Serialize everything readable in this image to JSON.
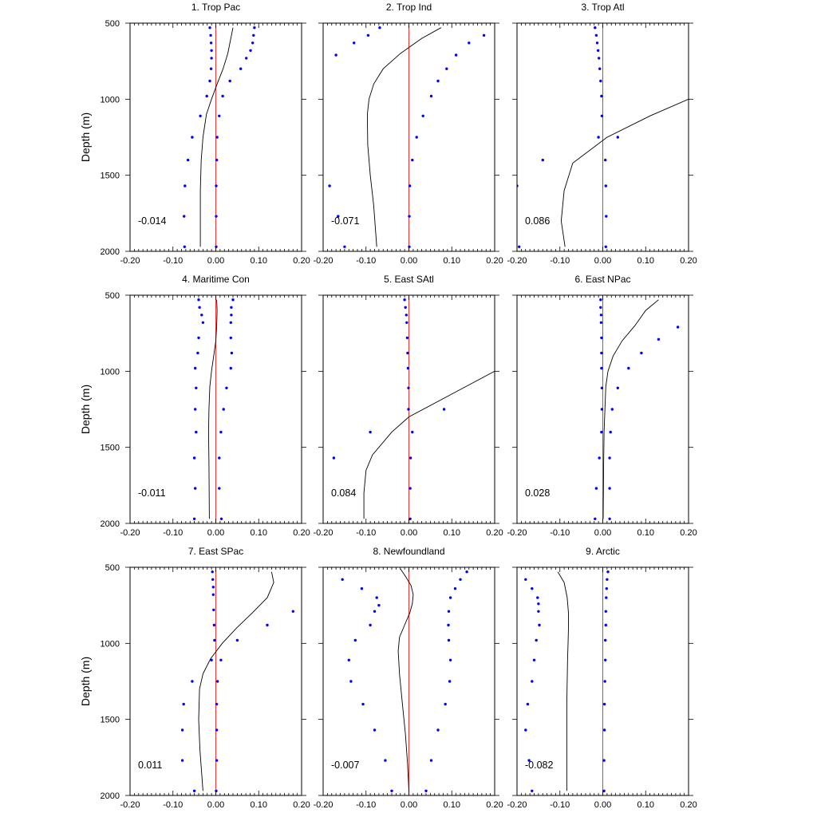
{
  "chart_data": [
    {
      "type": "line",
      "title": "1. Trop Pac",
      "ylabel": "Depth (m)",
      "xlim": [
        -0.2,
        0.2
      ],
      "ylim": [
        500,
        2000
      ],
      "y_inverted": true,
      "xticks": [
        "-0.20",
        "-0.10",
        "0.00",
        "0.10",
        "0.20"
      ],
      "yticks": [
        "500",
        "1000",
        "1500",
        "2000"
      ],
      "annotation": "-0.014",
      "series": [
        {
          "kind": "line",
          "color": "#000000",
          "x": [
            0.04,
            0.035,
            0.028,
            0.017,
            0.003,
            -0.01,
            -0.022,
            -0.03,
            -0.034,
            -0.036,
            -0.036
          ],
          "y": [
            530,
            600,
            700,
            800,
            900,
            1000,
            1100,
            1250,
            1400,
            1600,
            1970
          ]
        },
        {
          "kind": "points",
          "color": "#0000ff",
          "x": [
            -0.014,
            -0.012,
            -0.011,
            -0.01,
            -0.01,
            -0.011,
            -0.014,
            -0.021,
            -0.036,
            -0.055,
            -0.065,
            -0.072,
            -0.074,
            -0.073
          ],
          "y": [
            530,
            580,
            630,
            680,
            730,
            800,
            880,
            980,
            1110,
            1250,
            1400,
            1570,
            1770,
            1970
          ]
        },
        {
          "kind": "points",
          "color": "#0000ff",
          "x": [
            0.09,
            0.088,
            0.086,
            0.081,
            0.071,
            0.058,
            0.033,
            0.016,
            0.008,
            0.003,
            0.002,
            0.001,
            0.001,
            0.001
          ],
          "y": [
            530,
            580,
            630,
            680,
            730,
            800,
            880,
            980,
            1110,
            1250,
            1400,
            1570,
            1770,
            1970
          ]
        }
      ]
    },
    {
      "type": "line",
      "title": "2. Trop Ind",
      "ylabel": "",
      "xlim": [
        -0.2,
        0.2
      ],
      "ylim": [
        500,
        2000
      ],
      "y_inverted": true,
      "xticks": [
        "-0.20",
        "-0.10",
        "0.00",
        "0.10",
        "0.20"
      ],
      "yticks": [],
      "annotation": "-0.071",
      "series": [
        {
          "kind": "line",
          "color": "#000000",
          "x": [
            0.075,
            0.03,
            -0.02,
            -0.06,
            -0.082,
            -0.093,
            -0.097,
            -0.096,
            -0.09,
            -0.082,
            -0.075
          ],
          "y": [
            530,
            600,
            700,
            800,
            900,
            1000,
            1100,
            1300,
            1500,
            1700,
            1970
          ]
        },
        {
          "kind": "points",
          "color": "#0000ff",
          "x": [
            -0.068,
            -0.095,
            -0.128,
            -0.17,
            -0.185,
            -0.165,
            -0.15
          ],
          "y": [
            530,
            580,
            630,
            710,
            1570,
            1770,
            1970
          ]
        },
        {
          "kind": "points",
          "color": "#0000ff",
          "x": [
            0.175,
            0.14,
            0.11,
            0.088,
            0.068,
            0.052,
            0.033,
            0.018,
            0.008,
            0.002,
            0.001,
            0.001
          ],
          "y": [
            580,
            630,
            710,
            800,
            880,
            980,
            1110,
            1250,
            1400,
            1570,
            1770,
            1970
          ]
        }
      ]
    },
    {
      "type": "line",
      "title": "3. Trop Atl",
      "ylabel": "",
      "xlim": [
        -0.2,
        0.2
      ],
      "ylim": [
        500,
        2000
      ],
      "y_inverted": true,
      "xticks": [
        "-0.20",
        "-0.10",
        "0.00",
        "0.10",
        "0.20"
      ],
      "yticks": [],
      "annotation": "0.086",
      "series": [
        {
          "kind": "line",
          "color": "#000000",
          "x": [
            0.2,
            0.11,
            0.01,
            -0.07,
            -0.09,
            -0.097,
            -0.088
          ],
          "y": [
            1000,
            1110,
            1250,
            1420,
            1600,
            1800,
            1970
          ]
        },
        {
          "kind": "points",
          "color": "#0000ff",
          "x": [
            -0.018,
            -0.015,
            -0.013,
            -0.011,
            -0.009,
            -0.007,
            -0.005,
            -0.003,
            -0.002,
            -0.01,
            -0.14,
            -0.2,
            -0.195
          ],
          "y": [
            530,
            580,
            630,
            680,
            730,
            800,
            880,
            980,
            1110,
            1250,
            1400,
            1570,
            1970
          ]
        },
        {
          "kind": "points",
          "color": "#0000ff",
          "x": [
            0.035,
            0.006,
            0.007,
            0.008,
            0.007
          ],
          "y": [
            1250,
            1400,
            1570,
            1770,
            1970
          ]
        }
      ]
    },
    {
      "type": "line",
      "title": "4. Maritime Con",
      "ylabel": "Depth (m)",
      "xlim": [
        -0.2,
        0.2
      ],
      "ylim": [
        500,
        2000
      ],
      "y_inverted": true,
      "xticks": [
        "-0.20",
        "-0.10",
        "0.00",
        "0.10",
        "0.20"
      ],
      "yticks": [
        "500",
        "1000",
        "1500",
        "2000"
      ],
      "annotation": "-0.011",
      "series": [
        {
          "kind": "line",
          "color": "#000000",
          "x": [
            0.002,
            0.003,
            0.002,
            0.0,
            -0.005,
            -0.01,
            -0.014,
            -0.016,
            -0.017,
            -0.016,
            -0.015
          ],
          "y": [
            530,
            600,
            700,
            800,
            900,
            1000,
            1100,
            1250,
            1400,
            1600,
            1970
          ]
        },
        {
          "kind": "points",
          "color": "#0000ff",
          "x": [
            -0.04,
            -0.038,
            -0.033,
            -0.03,
            -0.04,
            -0.042,
            -0.048,
            -0.046,
            -0.048,
            -0.046,
            -0.05,
            -0.048,
            -0.05
          ],
          "y": [
            530,
            580,
            630,
            680,
            780,
            880,
            980,
            1110,
            1250,
            1400,
            1570,
            1770,
            1970
          ]
        },
        {
          "kind": "points",
          "color": "#0000ff",
          "x": [
            0.04,
            0.036,
            0.036,
            0.035,
            0.035,
            0.037,
            0.035,
            0.025,
            0.018,
            0.012,
            0.008,
            0.008,
            0.013
          ],
          "y": [
            530,
            580,
            630,
            680,
            780,
            880,
            980,
            1110,
            1250,
            1400,
            1570,
            1770,
            1970
          ]
        }
      ]
    },
    {
      "type": "line",
      "title": "5. East SAtl",
      "ylabel": "",
      "xlim": [
        -0.2,
        0.2
      ],
      "ylim": [
        500,
        2000
      ],
      "y_inverted": true,
      "xticks": [
        "-0.20",
        "-0.10",
        "0.00",
        "0.10",
        "0.20"
      ],
      "yticks": [],
      "annotation": "0.084",
      "series": [
        {
          "kind": "line",
          "color": "#000000",
          "x": [
            0.2,
            0.1,
            0.0,
            -0.04,
            -0.085,
            -0.1,
            -0.105,
            -0.105
          ],
          "y": [
            1000,
            1150,
            1300,
            1400,
            1550,
            1650,
            1800,
            1970
          ]
        },
        {
          "kind": "points",
          "color": "#0000ff",
          "x": [
            -0.01,
            -0.008,
            -0.006,
            -0.005,
            -0.004,
            -0.003,
            -0.002,
            -0.001,
            -0.001,
            -0.09,
            -0.175
          ],
          "y": [
            530,
            580,
            630,
            680,
            780,
            880,
            980,
            1110,
            1250,
            1400,
            1570
          ]
        },
        {
          "kind": "points",
          "color": "#0000ff",
          "x": [
            0.082,
            0.008,
            0.004,
            0.003,
            0.003
          ],
          "y": [
            1250,
            1400,
            1570,
            1770,
            1970
          ]
        }
      ]
    },
    {
      "type": "line",
      "title": "6. East NPac",
      "ylabel": "",
      "xlim": [
        -0.2,
        0.2
      ],
      "ylim": [
        500,
        2000
      ],
      "y_inverted": true,
      "xticks": [
        "-0.20",
        "-0.10",
        "0.00",
        "0.10",
        "0.20"
      ],
      "yticks": [],
      "annotation": "0.028",
      "series": [
        {
          "kind": "line",
          "color": "#000000",
          "x": [
            0.13,
            0.1,
            0.075,
            0.045,
            0.024,
            0.012,
            0.007,
            0.005,
            0.003,
            0.002,
            0.001
          ],
          "y": [
            530,
            600,
            700,
            800,
            900,
            1000,
            1100,
            1250,
            1400,
            1600,
            1970
          ]
        },
        {
          "kind": "points",
          "color": "#0000ff",
          "x": [
            -0.005,
            -0.005,
            -0.004,
            -0.004,
            -0.003,
            -0.003,
            -0.003,
            -0.002,
            -0.002,
            -0.003,
            -0.008,
            -0.015,
            -0.018
          ],
          "y": [
            530,
            580,
            630,
            680,
            780,
            880,
            980,
            1110,
            1250,
            1400,
            1570,
            1770,
            1970
          ]
        },
        {
          "kind": "points",
          "color": "#0000ff",
          "x": [
            0.175,
            0.13,
            0.09,
            0.06,
            0.035,
            0.022,
            0.018,
            0.016,
            0.016,
            0.016
          ],
          "y": [
            710,
            790,
            880,
            980,
            1110,
            1250,
            1400,
            1570,
            1770,
            1970
          ]
        }
      ]
    },
    {
      "type": "line",
      "title": "7. East SPac",
      "ylabel": "Depth (m)",
      "xlim": [
        -0.2,
        0.2
      ],
      "ylim": [
        500,
        2000
      ],
      "y_inverted": true,
      "xticks": [
        "-0.20",
        "-0.10",
        "0.00",
        "0.10",
        "0.20"
      ],
      "yticks": [
        "500",
        "1000",
        "1500",
        "2000"
      ],
      "annotation": "0.011",
      "series": [
        {
          "kind": "line",
          "color": "#000000",
          "x": [
            0.13,
            0.135,
            0.12,
            0.085,
            0.048,
            0.015,
            -0.012,
            -0.03,
            -0.038,
            -0.04,
            -0.037,
            -0.03
          ],
          "y": [
            530,
            600,
            700,
            800,
            900,
            1000,
            1100,
            1200,
            1300,
            1500,
            1700,
            1970
          ]
        },
        {
          "kind": "points",
          "color": "#0000ff",
          "x": [
            -0.008,
            -0.007,
            -0.006,
            -0.006,
            -0.005,
            -0.004,
            -0.003,
            -0.01,
            -0.055,
            -0.075,
            -0.078,
            -0.078,
            -0.05
          ],
          "y": [
            530,
            580,
            630,
            680,
            780,
            880,
            980,
            1110,
            1250,
            1400,
            1570,
            1770,
            1970
          ]
        },
        {
          "kind": "points",
          "color": "#0000ff",
          "x": [
            0.18,
            0.12,
            0.05,
            0.012,
            0.004,
            0.002,
            0.002,
            0.002,
            0.001
          ],
          "y": [
            790,
            880,
            980,
            1110,
            1250,
            1400,
            1570,
            1770,
            1970
          ]
        }
      ]
    },
    {
      "type": "line",
      "title": "8. Newfoundland",
      "ylabel": "",
      "xlim": [
        -0.2,
        0.2
      ],
      "ylim": [
        500,
        2000
      ],
      "y_inverted": true,
      "xticks": [
        "-0.20",
        "-0.10",
        "0.00",
        "0.10",
        "0.20"
      ],
      "yticks": [],
      "annotation": "-0.007",
      "series": [
        {
          "kind": "line",
          "color": "#000000",
          "x": [
            -0.02,
            -0.008,
            0.005,
            0.01,
            0.008,
            0.002,
            -0.01,
            -0.022,
            -0.025,
            -0.022,
            -0.015,
            -0.008,
            -0.003,
            0.0
          ],
          "y": [
            510,
            560,
            620,
            680,
            740,
            800,
            880,
            960,
            1050,
            1200,
            1400,
            1600,
            1800,
            1970
          ]
        },
        {
          "kind": "points",
          "color": "#0000ff",
          "x": [
            -0.155,
            -0.11,
            -0.075,
            -0.07,
            -0.08,
            -0.09,
            -0.125,
            -0.14,
            -0.135,
            -0.107,
            -0.08,
            -0.055,
            -0.04
          ],
          "y": [
            580,
            640,
            700,
            750,
            790,
            880,
            980,
            1110,
            1250,
            1400,
            1570,
            1770,
            1970
          ]
        },
        {
          "kind": "points",
          "color": "#0000ff",
          "x": [
            0.135,
            0.12,
            0.108,
            0.097,
            0.093,
            0.092,
            0.093,
            0.097,
            0.095,
            0.085,
            0.068,
            0.052,
            0.04
          ],
          "y": [
            530,
            580,
            640,
            700,
            790,
            880,
            980,
            1110,
            1250,
            1400,
            1570,
            1770,
            1970
          ]
        }
      ]
    },
    {
      "type": "line",
      "title": "9. Arctic",
      "ylabel": "",
      "xlim": [
        -0.2,
        0.2
      ],
      "ylim": [
        500,
        2000
      ],
      "y_inverted": true,
      "xticks": [
        "-0.20",
        "-0.10",
        "0.00",
        "0.10",
        "0.20"
      ],
      "yticks": [],
      "annotation": "-0.082",
      "series": [
        {
          "kind": "line",
          "color": "#000000",
          "x": [
            -0.105,
            -0.09,
            -0.083,
            -0.08,
            -0.08,
            -0.081,
            -0.082,
            -0.083,
            -0.084,
            -0.084,
            -0.084
          ],
          "y": [
            530,
            600,
            700,
            800,
            900,
            1000,
            1100,
            1250,
            1400,
            1600,
            1970
          ]
        },
        {
          "kind": "points",
          "color": "#0000ff",
          "x": [
            -0.18,
            -0.165,
            -0.152,
            -0.15,
            -0.15,
            -0.148,
            -0.155,
            -0.16,
            -0.165,
            -0.175,
            -0.18,
            -0.172,
            -0.165
          ],
          "y": [
            580,
            640,
            700,
            740,
            790,
            880,
            980,
            1110,
            1250,
            1400,
            1570,
            1770,
            1970
          ]
        },
        {
          "kind": "points",
          "color": "#0000ff",
          "x": [
            0.012,
            0.01,
            0.009,
            0.008,
            0.007,
            0.007,
            0.006,
            0.006,
            0.005,
            0.004,
            0.004,
            0.003,
            0.003
          ],
          "y": [
            530,
            580,
            640,
            700,
            790,
            880,
            980,
            1110,
            1250,
            1400,
            1570,
            1770,
            1970
          ]
        }
      ]
    }
  ]
}
